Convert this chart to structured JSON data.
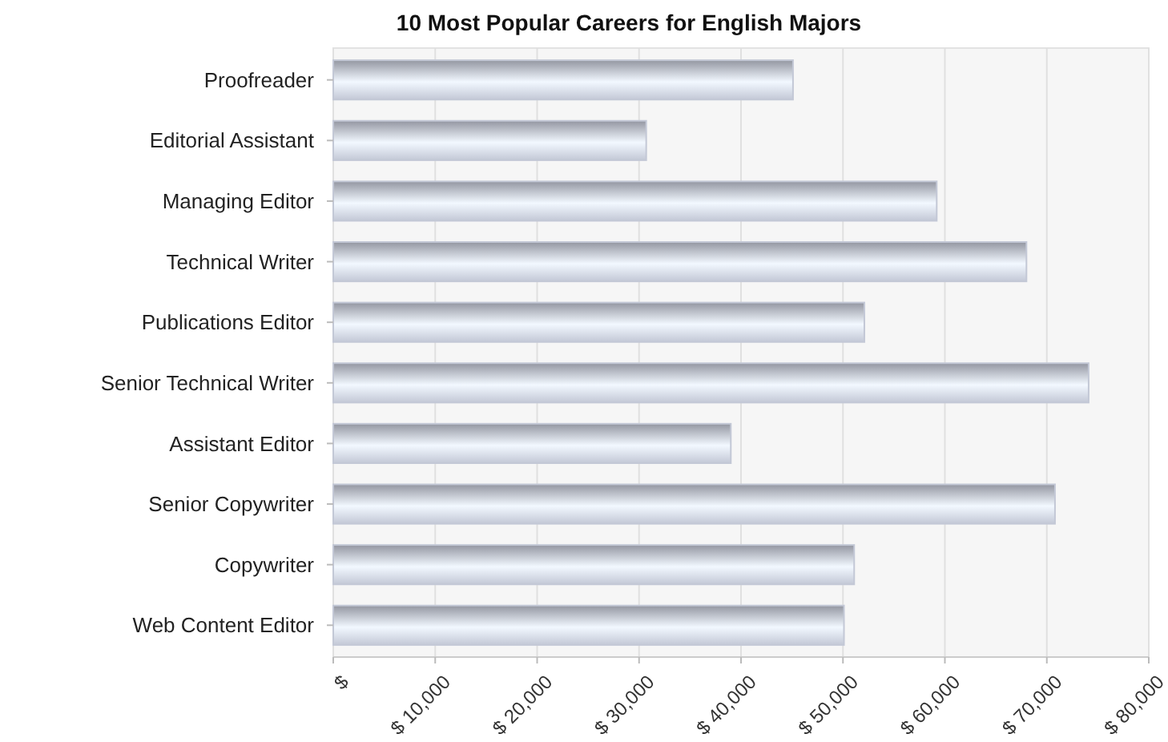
{
  "chart_data": {
    "type": "bar",
    "orientation": "horizontal",
    "title": "10 Most Popular Careers for English Majors",
    "categories": [
      "Proofreader",
      "Editorial Assistant",
      "Managing Editor",
      "Technical Writer",
      "Publications Editor",
      "Senior Technical Writer",
      "Assistant Editor",
      "Senior Copywriter",
      "Copywriter",
      "Web Content Editor"
    ],
    "values": [
      45100,
      30700,
      59200,
      68000,
      52100,
      74100,
      39000,
      70800,
      51100,
      50100
    ],
    "color": "#c3c8d6",
    "xlim": [
      0,
      80000
    ],
    "xticks": [
      {
        "value": 0,
        "label": "$"
      },
      {
        "value": 10000,
        "label": "$ 10,000"
      },
      {
        "value": 20000,
        "label": "$ 20,000"
      },
      {
        "value": 30000,
        "label": "$ 30,000"
      },
      {
        "value": 40000,
        "label": "$ 40,000"
      },
      {
        "value": 50000,
        "label": "$ 50,000"
      },
      {
        "value": 60000,
        "label": "$ 60,000"
      },
      {
        "value": 70000,
        "label": "$ 70,000"
      },
      {
        "value": 80000,
        "label": "$ 80,000"
      }
    ],
    "grid": "x"
  }
}
